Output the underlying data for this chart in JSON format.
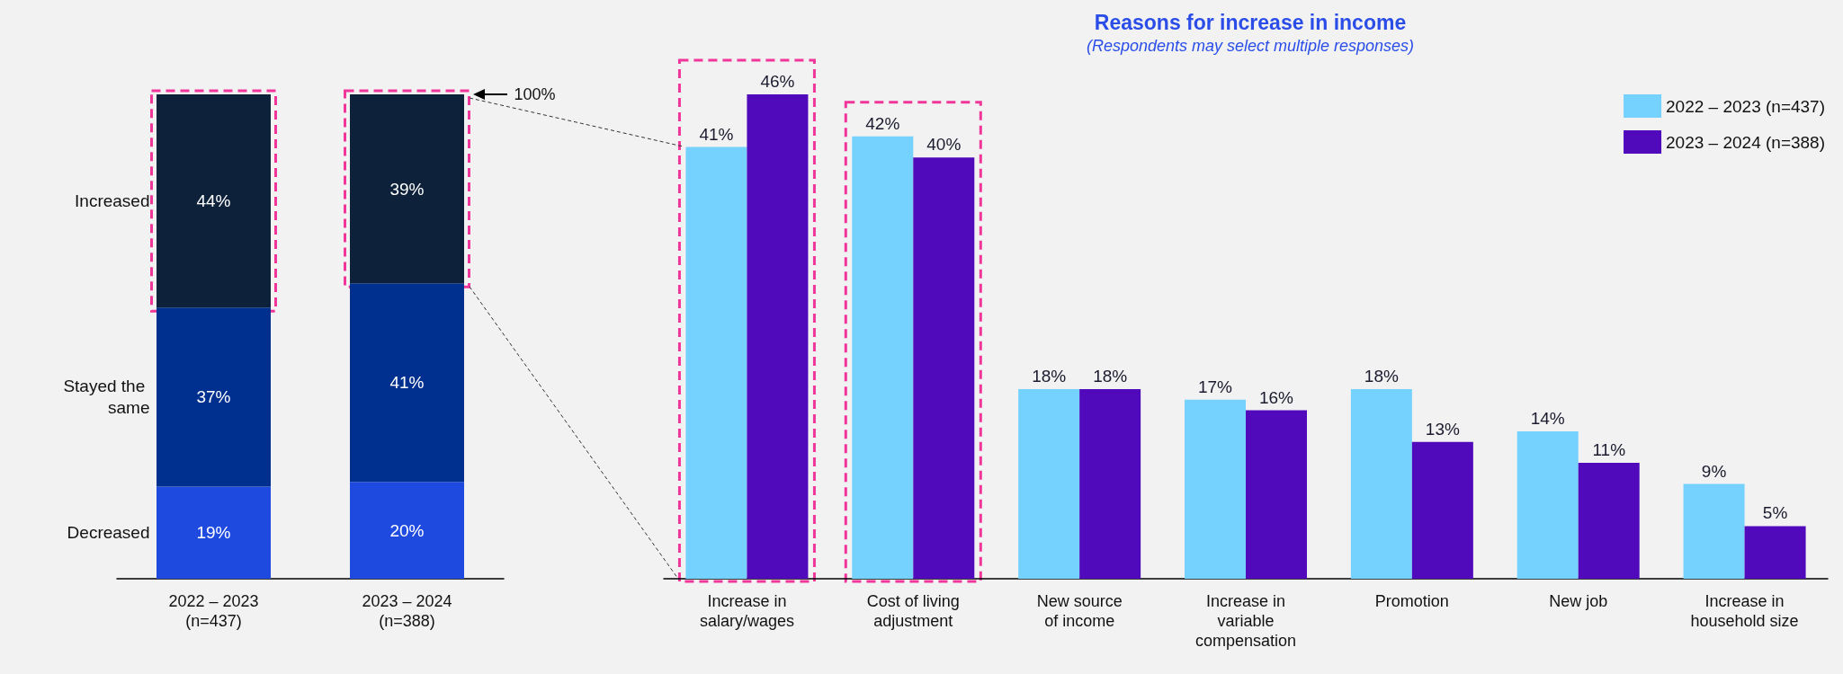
{
  "chart_data": [
    {
      "type": "bar",
      "stacked": true,
      "tick_labels": "x",
      "legend": false,
      "categories": [
        "2022 – 2023\n(n=437)",
        "2023 – 2024\n(n=388)"
      ],
      "series": [
        {
          "name": "Decreased",
          "color": "#1f4ae0",
          "values": [
            19,
            20
          ],
          "value_labels": [
            "19%",
            "20%"
          ]
        },
        {
          "name": "Stayed the same",
          "color": "#00308f",
          "values": [
            37,
            41
          ],
          "value_labels": [
            "37%",
            "41%"
          ]
        },
        {
          "name": "Increased",
          "color": "#0d223a",
          "values": [
            44,
            39
          ],
          "value_labels": [
            "44%",
            "39%"
          ]
        }
      ],
      "annotations": [
        "100%"
      ]
    },
    {
      "type": "bar",
      "title": "Reasons for increase in income",
      "subtitle": "(Respondents may select multiple responses)",
      "tick_labels": "x",
      "legend": "top right",
      "categories": [
        "Increase in\nsalary/wages",
        "Cost of living\nadjustment",
        "New source\nof income",
        "Increase in\nvariable\ncompensation",
        "Promotion",
        "New job",
        "Increase in\nhousehold size"
      ],
      "series": [
        {
          "name": "2022 – 2023 (n=437)",
          "color": "#75d1fd",
          "values": [
            41,
            42,
            18,
            17,
            18,
            14,
            9
          ],
          "value_labels": [
            "41%",
            "42%",
            "18%",
            "17%",
            "18%",
            "14%",
            "9%"
          ]
        },
        {
          "name": "2023 – 2024 (n=388)",
          "color": "#5009bb",
          "values": [
            46,
            40,
            18,
            16,
            13,
            11,
            5
          ],
          "value_labels": [
            "46%",
            "40%",
            "18%",
            "16%",
            "13%",
            "11%",
            "5%"
          ]
        }
      ]
    }
  ]
}
